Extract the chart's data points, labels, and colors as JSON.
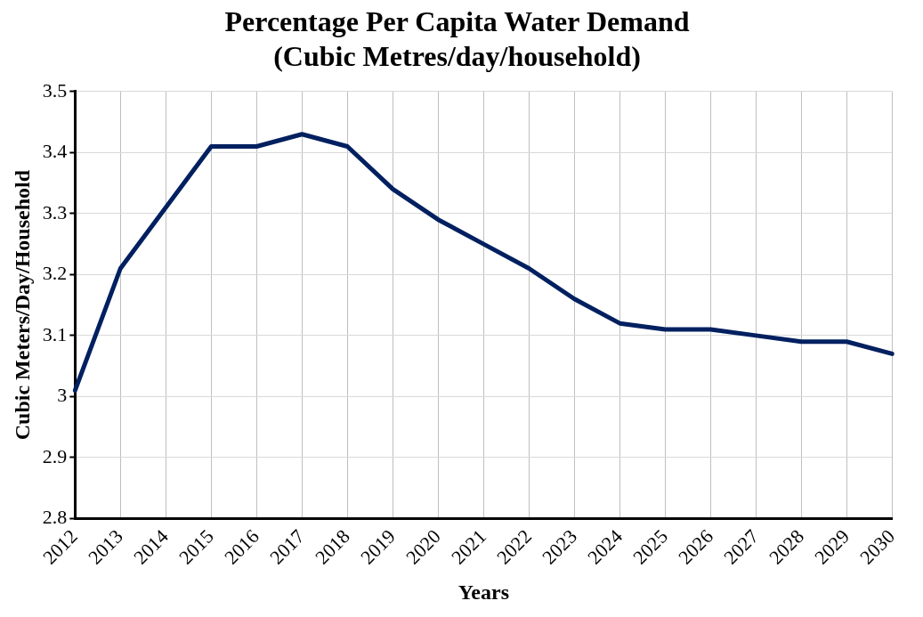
{
  "chart_data": {
    "type": "line",
    "title": "Percentage Per Capita Water Demand (Cubic Metres/day/household)",
    "xlabel": "Years",
    "ylabel": "Cubic Meters/Day/Household",
    "categories": [
      "2012",
      "2013",
      "2014",
      "2015",
      "2016",
      "2017",
      "2018",
      "2019",
      "2020",
      "2021",
      "2022",
      "2023",
      "2024",
      "2025",
      "2026",
      "2027",
      "2028",
      "2029",
      "2030"
    ],
    "series": [
      {
        "color": "#002060",
        "values": [
          3.01,
          3.21,
          3.31,
          3.41,
          3.41,
          3.43,
          3.41,
          3.34,
          3.29,
          3.25,
          3.21,
          3.16,
          3.12,
          3.11,
          3.11,
          3.1,
          3.09,
          3.09,
          3.07
        ]
      }
    ],
    "ylim": [
      2.8,
      3.5
    ],
    "yticks": [
      2.8,
      2.9,
      3,
      3.1,
      3.2,
      3.3,
      3.4,
      3.5
    ],
    "grid": true,
    "legend": false,
    "marker": "none",
    "line_style": "solid"
  }
}
